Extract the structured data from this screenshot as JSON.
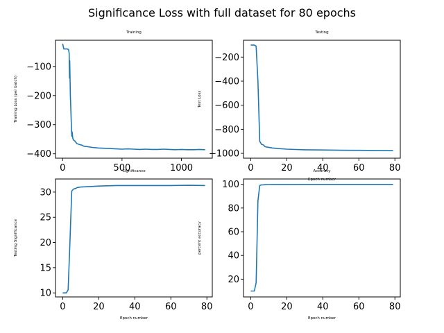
{
  "figure": {
    "title": "Significance Loss with full dataset for 80 epochs"
  },
  "colors": {
    "line": "#1f77b4",
    "frame": "#000000",
    "background": "#ffffff"
  },
  "chart_data": [
    {
      "id": "training",
      "type": "line",
      "title": "Training",
      "xlabel": "",
      "ylabel": "Training Loss (per batch)",
      "xlim": [
        -60,
        1260
      ],
      "ylim": [
        -415,
        -10
      ],
      "xticks": [
        0,
        500,
        1000
      ],
      "yticks": [
        -400,
        -300,
        -200,
        -100
      ],
      "series": [
        {
          "name": "training loss",
          "x": [
            0,
            10,
            20,
            30,
            40,
            50,
            55,
            58,
            60,
            62,
            65,
            70,
            75,
            78,
            80,
            85,
            90,
            100,
            110,
            120,
            140,
            160,
            180,
            200,
            250,
            300,
            350,
            400,
            450,
            500,
            550,
            600,
            650,
            700,
            750,
            800,
            850,
            900,
            950,
            1000,
            1050,
            1100,
            1150,
            1200
          ],
          "y": [
            -22,
            -40,
            -40,
            -40,
            -40,
            -42,
            -55,
            -140,
            -80,
            -130,
            -200,
            -260,
            -320,
            -340,
            -325,
            -345,
            -352,
            -355,
            -360,
            -365,
            -368,
            -370,
            -374,
            -375,
            -378,
            -380,
            -381,
            -382,
            -383,
            -384,
            -383,
            -384,
            -385,
            -384,
            -385,
            -385,
            -384,
            -385,
            -386,
            -385,
            -386,
            -386,
            -385,
            -386
          ]
        }
      ]
    },
    {
      "id": "testing",
      "type": "line",
      "title": "Testing",
      "xlabel": "Epoch number",
      "ylabel": "Test Loss",
      "xlim": [
        -4,
        83
      ],
      "ylim": [
        -1040,
        -60
      ],
      "xticks": [
        0,
        20,
        40,
        60,
        80
      ],
      "yticks": [
        -1000,
        -800,
        -600,
        -400,
        -200
      ],
      "series": [
        {
          "name": "test loss",
          "x": [
            0,
            1,
            2,
            3,
            4,
            5,
            6,
            7,
            8,
            10,
            12,
            15,
            20,
            25,
            30,
            40,
            50,
            60,
            70,
            79
          ],
          "y": [
            -100,
            -100,
            -100,
            -110,
            -400,
            -900,
            -925,
            -930,
            -945,
            -950,
            -955,
            -960,
            -965,
            -968,
            -970,
            -972,
            -974,
            -975,
            -976,
            -977
          ]
        }
      ]
    },
    {
      "id": "significance",
      "type": "line",
      "title": "Significance",
      "xlabel": "Epoch number",
      "ylabel": "Testing Significance",
      "xlim": [
        -4,
        83
      ],
      "ylim": [
        9.2,
        32.6
      ],
      "xticks": [
        0,
        20,
        40,
        60,
        80
      ],
      "yticks": [
        10,
        15,
        20,
        25,
        30
      ],
      "series": [
        {
          "name": "significance",
          "x": [
            0,
            1,
            2,
            3,
            4,
            5,
            6,
            7,
            8,
            10,
            12,
            15,
            20,
            25,
            30,
            40,
            50,
            60,
            70,
            79
          ],
          "y": [
            10,
            10,
            10,
            10.6,
            20,
            30.2,
            30.6,
            30.7,
            30.9,
            31,
            31.05,
            31.1,
            31.2,
            31.25,
            31.3,
            31.3,
            31.3,
            31.3,
            31.35,
            31.3
          ]
        }
      ]
    },
    {
      "id": "accuracy",
      "type": "line",
      "title": "Accuracy",
      "xlabel": "Epoch number",
      "ylabel": "percent accuracy",
      "xlim": [
        -4,
        83
      ],
      "ylim": [
        5,
        104.5
      ],
      "xticks": [
        0,
        20,
        40,
        60,
        80
      ],
      "yticks": [
        20,
        40,
        60,
        80,
        100
      ],
      "series": [
        {
          "name": "accuracy",
          "x": [
            0,
            1,
            2,
            3,
            4,
            5,
            6,
            7,
            8,
            10,
            12,
            15,
            20,
            25,
            30,
            40,
            50,
            60,
            70,
            79
          ],
          "y": [
            10,
            10,
            10,
            17,
            86,
            99,
            99.5,
            99.6,
            99.7,
            99.8,
            99.85,
            99.9,
            99.9,
            99.9,
            99.95,
            99.95,
            99.95,
            99.95,
            99.95,
            99.95
          ]
        }
      ]
    }
  ]
}
